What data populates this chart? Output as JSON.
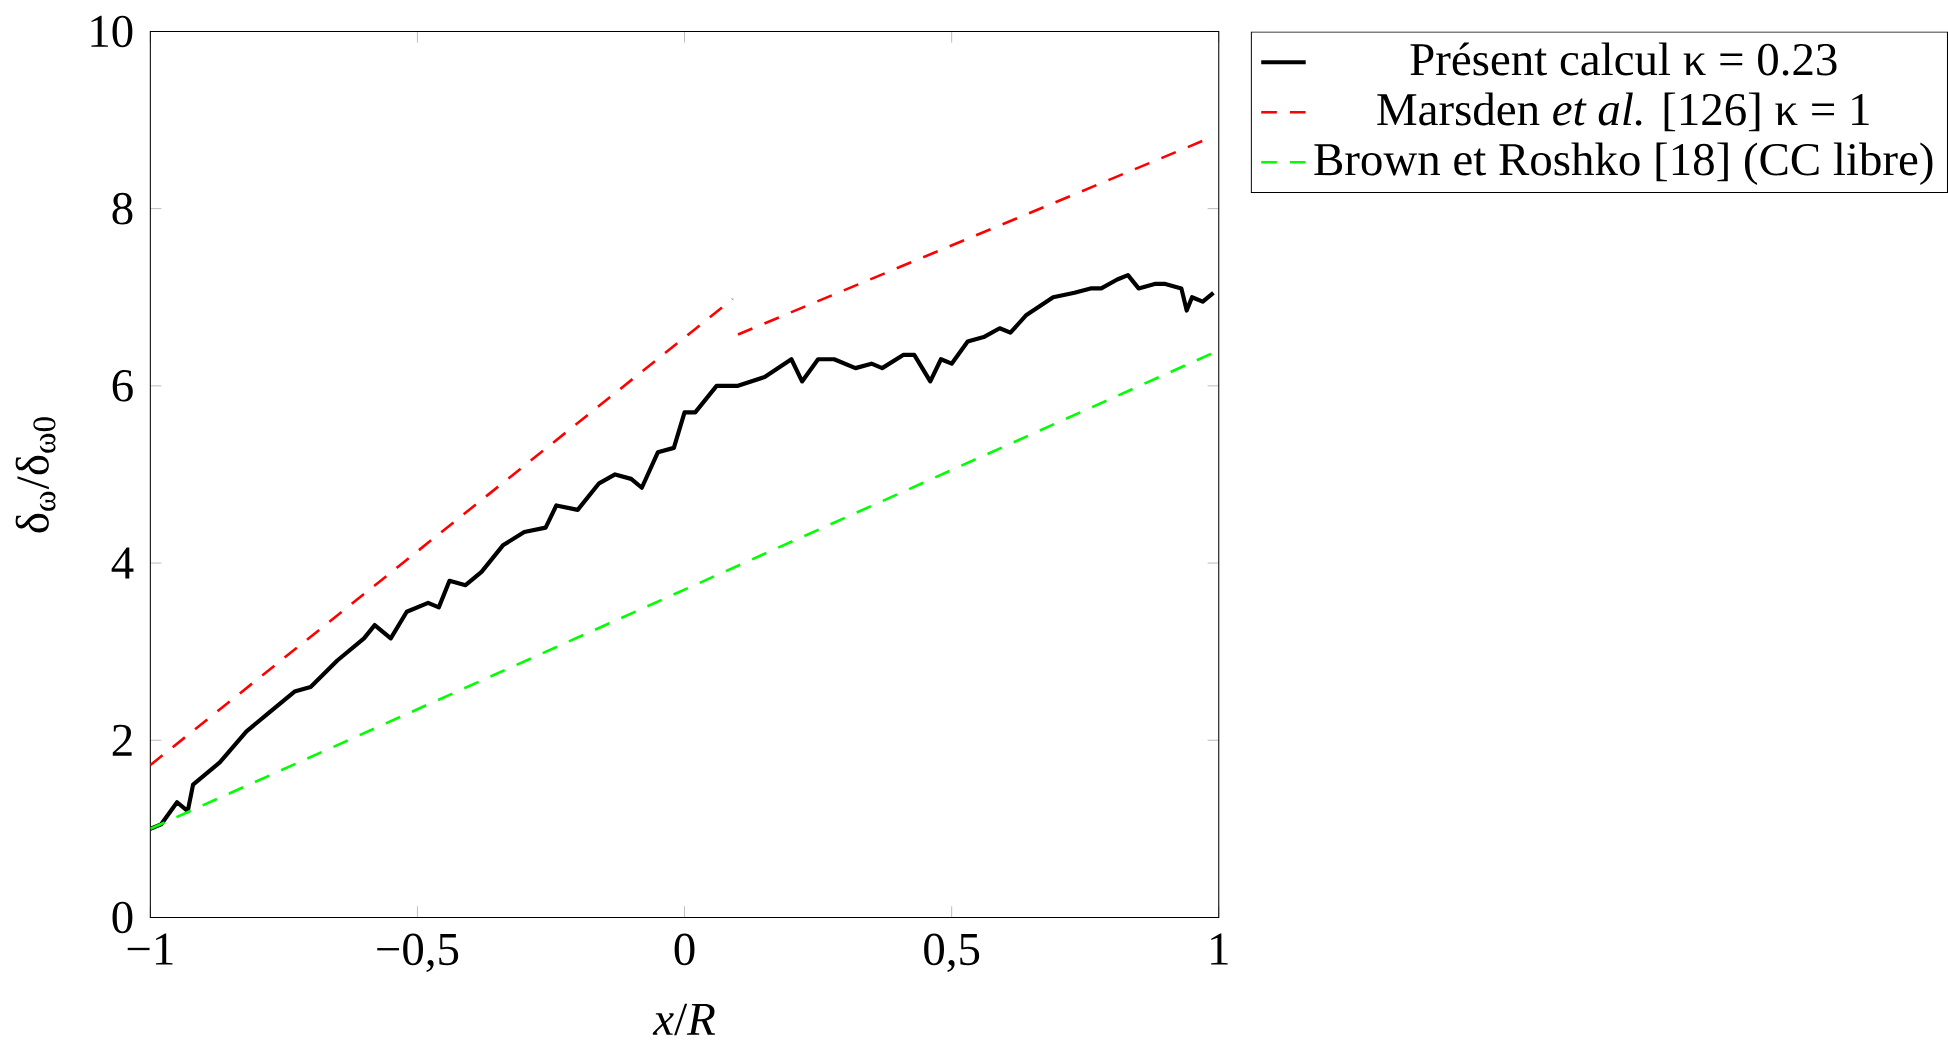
{
  "chart_data": {
    "type": "line",
    "xlabel": "*x*/*R*",
    "ylabel": "δ$_{ω}$/δ$_{ω0}$",
    "xlim": [
      -1,
      1
    ],
    "ylim": [
      0,
      10
    ],
    "xticks": [
      {
        "value": -1,
        "label": "−1"
      },
      {
        "value": -0.5,
        "label": "−0,5"
      },
      {
        "value": 0,
        "label": "0"
      },
      {
        "value": 0.5,
        "label": "0,5"
      },
      {
        "value": 1,
        "label": "1"
      }
    ],
    "yticks": [
      0,
      2,
      4,
      6,
      8,
      10
    ],
    "legend": "top right",
    "grid": false,
    "marker": "none",
    "series": [
      {
        "name": "Présent calcul κ = 0.23",
        "color": "#000000",
        "line_style": "solid",
        "x": [
          -1,
          -0.98,
          -0.95,
          -0.93,
          -0.92,
          -0.87,
          -0.82,
          -0.78,
          -0.73,
          -0.7,
          -0.65,
          -0.6,
          -0.58,
          -0.55,
          -0.52,
          -0.48,
          -0.46,
          -0.44,
          -0.41,
          -0.38,
          -0.34,
          -0.3,
          -0.26,
          -0.24,
          -0.2,
          -0.16,
          -0.13,
          -0.1,
          -0.08,
          -0.05,
          -0.02,
          0.0,
          0.02,
          0.06,
          0.1,
          0.15,
          0.2,
          0.22,
          0.25,
          0.28,
          0.32,
          0.35,
          0.37,
          0.41,
          0.43,
          0.46,
          0.48,
          0.5,
          0.53,
          0.56,
          0.59,
          0.61,
          0.64,
          0.69,
          0.73,
          0.76,
          0.78,
          0.81,
          0.83,
          0.85,
          0.88,
          0.9,
          0.93,
          0.94,
          0.95,
          0.97,
          0.99
        ],
        "values": [
          1.0,
          1.05,
          1.3,
          1.2,
          1.5,
          1.75,
          2.1,
          2.3,
          2.55,
          2.6,
          2.9,
          3.15,
          3.3,
          3.15,
          3.45,
          3.55,
          3.5,
          3.8,
          3.75,
          3.9,
          4.2,
          4.35,
          4.4,
          4.65,
          4.6,
          4.9,
          5.0,
          4.95,
          4.85,
          5.25,
          5.3,
          5.7,
          5.7,
          6.0,
          6.0,
          6.1,
          6.3,
          6.05,
          6.3,
          6.3,
          6.2,
          6.25,
          6.2,
          6.35,
          6.35,
          6.05,
          6.3,
          6.25,
          6.5,
          6.55,
          6.65,
          6.6,
          6.8,
          7.0,
          7.05,
          7.1,
          7.1,
          7.2,
          7.25,
          7.1,
          7.15,
          7.15,
          7.1,
          6.85,
          7.0,
          6.95,
          7.05
        ]
      },
      {
        "name": "Marsden *et al.* [126] κ = 1",
        "color": "#ff0000",
        "line_style": "dashed",
        "x": [
          -1,
          0.09,
          0.095,
          0.1,
          0.98
        ],
        "values": [
          1.72,
          6.98,
          null,
          6.58,
          8.79
        ]
      },
      {
        "name": "Brown et Roshko [18] (CC libre)",
        "color": "#00ff00",
        "line_style": "dashed",
        "x": [
          -1,
          1
        ],
        "values": [
          1.0,
          6.4
        ]
      }
    ]
  }
}
